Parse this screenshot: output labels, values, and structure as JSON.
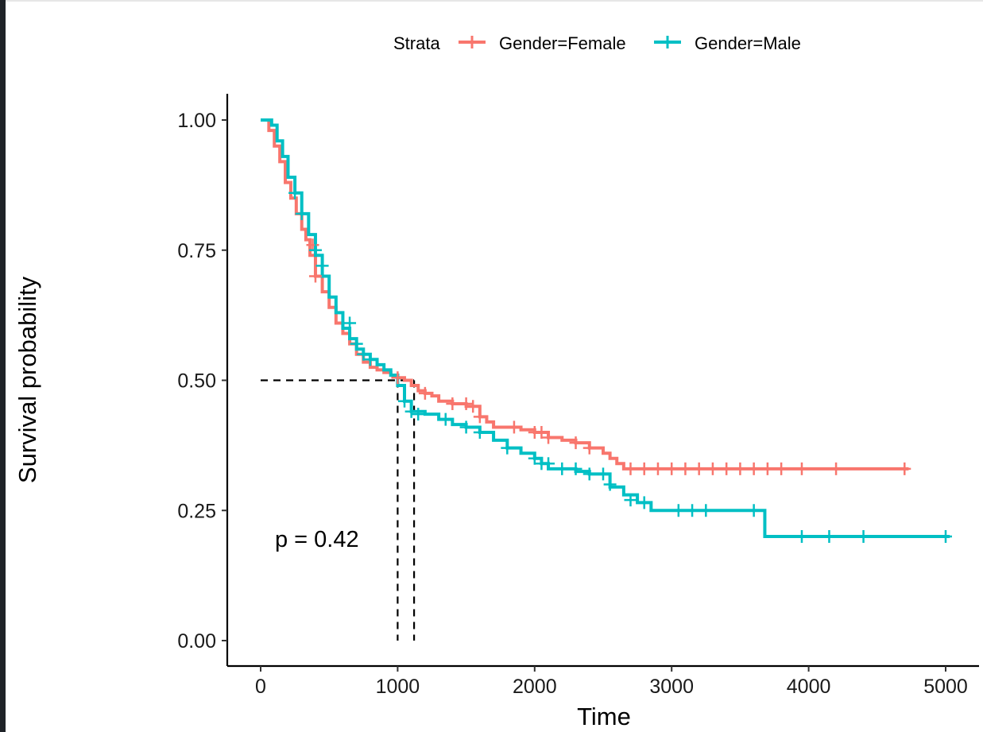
{
  "chart_data": {
    "type": "line",
    "subtype": "kaplan-meier",
    "xlabel": "Time",
    "ylabel": "Survival probability",
    "xlim": [
      0,
      5000
    ],
    "ylim": [
      0,
      1
    ],
    "x_ticks": [
      "0",
      "1000",
      "2000",
      "3000",
      "4000",
      "5000"
    ],
    "y_ticks": [
      "0.00",
      "0.25",
      "0.50",
      "0.75",
      "1.00"
    ],
    "grid": false,
    "legend_title": "Strata",
    "legend_position": "top",
    "annotation": "p = 0.42",
    "median_lines": [
      {
        "series": "Gender=Male",
        "median_time": 1000
      },
      {
        "series": "Gender=Female",
        "median_time": 1120
      }
    ],
    "series": [
      {
        "name": "Gender=Female",
        "color": "#F8766D",
        "x": [
          0,
          60,
          100,
          140,
          180,
          220,
          260,
          300,
          330,
          360,
          400,
          450,
          500,
          550,
          600,
          650,
          700,
          750,
          800,
          850,
          900,
          950,
          1000,
          1050,
          1100,
          1150,
          1200,
          1250,
          1300,
          1400,
          1500,
          1600,
          1650,
          1700,
          1800,
          1900,
          2000,
          2100,
          2200,
          2300,
          2400,
          2500,
          2550,
          2600,
          2650,
          4730
        ],
        "y": [
          1.0,
          0.98,
          0.95,
          0.92,
          0.88,
          0.85,
          0.82,
          0.79,
          0.77,
          0.74,
          0.7,
          0.67,
          0.64,
          0.61,
          0.59,
          0.57,
          0.55,
          0.535,
          0.525,
          0.52,
          0.515,
          0.51,
          0.505,
          0.5,
          0.49,
          0.48,
          0.475,
          0.47,
          0.46,
          0.455,
          0.45,
          0.43,
          0.42,
          0.41,
          0.41,
          0.405,
          0.4,
          0.39,
          0.385,
          0.38,
          0.37,
          0.36,
          0.35,
          0.34,
          0.33,
          0.33
        ],
        "censor_x": [
          380,
          400,
          750,
          1000,
          1200,
          1400,
          1500,
          1550,
          1600,
          1850,
          2000,
          2050,
          2100,
          2300,
          2400,
          2700,
          2800,
          2900,
          3000,
          3100,
          3200,
          3300,
          3400,
          3500,
          3600,
          3700,
          3800,
          3950,
          4200,
          4700
        ],
        "censor_y": [
          0.76,
          0.7,
          0.55,
          0.505,
          0.475,
          0.455,
          0.455,
          0.45,
          0.43,
          0.41,
          0.4,
          0.4,
          0.39,
          0.38,
          0.37,
          0.33,
          0.33,
          0.33,
          0.33,
          0.33,
          0.33,
          0.33,
          0.33,
          0.33,
          0.33,
          0.33,
          0.33,
          0.33,
          0.33,
          0.33
        ]
      },
      {
        "name": "Gender=Male",
        "color": "#00BFC4",
        "x": [
          0,
          80,
          120,
          160,
          200,
          250,
          300,
          350,
          400,
          450,
          500,
          550,
          600,
          650,
          700,
          750,
          800,
          850,
          900,
          950,
          1000,
          1050,
          1100,
          1200,
          1300,
          1400,
          1500,
          1600,
          1700,
          1800,
          1900,
          2000,
          2050,
          2100,
          2200,
          2300,
          2400,
          2500,
          2550,
          2650,
          2750,
          2850,
          3000,
          3200,
          3600,
          3680,
          5030
        ],
        "y": [
          1.0,
          0.99,
          0.96,
          0.93,
          0.89,
          0.86,
          0.82,
          0.78,
          0.74,
          0.7,
          0.66,
          0.63,
          0.6,
          0.58,
          0.56,
          0.55,
          0.54,
          0.53,
          0.52,
          0.51,
          0.49,
          0.46,
          0.44,
          0.435,
          0.425,
          0.415,
          0.41,
          0.4,
          0.385,
          0.37,
          0.36,
          0.35,
          0.34,
          0.33,
          0.33,
          0.325,
          0.32,
          0.32,
          0.295,
          0.28,
          0.265,
          0.25,
          0.25,
          0.25,
          0.25,
          0.2,
          0.2
        ],
        "censor_x": [
          250,
          300,
          400,
          450,
          650,
          700,
          750,
          800,
          1050,
          1100,
          1150,
          1350,
          1500,
          1600,
          1800,
          2000,
          2050,
          2100,
          2200,
          2300,
          2400,
          2500,
          2550,
          2700,
          2800,
          3050,
          3150,
          3250,
          3600,
          3950,
          4150,
          4400,
          5000
        ],
        "censor_y": [
          0.86,
          0.82,
          0.75,
          0.72,
          0.61,
          0.57,
          0.55,
          0.54,
          0.46,
          0.44,
          0.435,
          0.425,
          0.41,
          0.4,
          0.37,
          0.35,
          0.34,
          0.34,
          0.33,
          0.33,
          0.32,
          0.32,
          0.3,
          0.27,
          0.265,
          0.25,
          0.25,
          0.25,
          0.25,
          0.2,
          0.2,
          0.2,
          0.2
        ]
      }
    ]
  }
}
